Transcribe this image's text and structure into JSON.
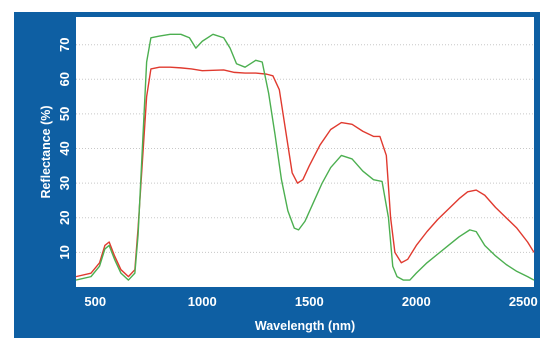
{
  "chart_data": {
    "type": "line",
    "title": "",
    "xlabel": "Wavelength (nm)",
    "ylabel": "Reflectance (%)",
    "xlim": [
      410,
      2550
    ],
    "ylim": [
      0,
      78
    ],
    "x_ticks": [
      500,
      1000,
      1500,
      2000,
      2500
    ],
    "y_ticks": [
      10,
      20,
      30,
      40,
      50,
      60,
      70
    ],
    "grid": "horizontal-dotted",
    "series": [
      {
        "color": "#e03a2f",
        "x": [
          410,
          480,
          520,
          545,
          565,
          590,
          620,
          655,
          685,
          700,
          720,
          740,
          760,
          800,
          850,
          900,
          950,
          1000,
          1050,
          1100,
          1150,
          1200,
          1250,
          1300,
          1330,
          1360,
          1390,
          1420,
          1445,
          1470,
          1500,
          1550,
          1600,
          1650,
          1700,
          1750,
          1800,
          1830,
          1860,
          1880,
          1900,
          1930,
          1960,
          2000,
          2050,
          2100,
          2150,
          2200,
          2240,
          2280,
          2320,
          2370,
          2420,
          2470,
          2520,
          2550
        ],
        "y": [
          3,
          4,
          7,
          12,
          13,
          9,
          5,
          3,
          5,
          17,
          36,
          55,
          63,
          63.5,
          63.5,
          63.3,
          63,
          62.5,
          62.6,
          62.7,
          62,
          61.8,
          61.8,
          61.5,
          61,
          57,
          45,
          33,
          30,
          31,
          35,
          41,
          45.5,
          47.5,
          47,
          45,
          43.5,
          43.5,
          38,
          20,
          10,
          7,
          8,
          12,
          16,
          19.5,
          22.5,
          25.5,
          27.5,
          28,
          26.5,
          23,
          20,
          17,
          13,
          10
        ]
      },
      {
        "color": "#4caf50",
        "x": [
          410,
          480,
          520,
          545,
          565,
          590,
          620,
          655,
          685,
          700,
          720,
          740,
          760,
          800,
          850,
          900,
          940,
          970,
          1000,
          1050,
          1100,
          1130,
          1160,
          1200,
          1250,
          1280,
          1310,
          1340,
          1370,
          1400,
          1430,
          1450,
          1480,
          1520,
          1560,
          1600,
          1650,
          1700,
          1750,
          1800,
          1840,
          1870,
          1890,
          1910,
          1940,
          1970,
          2000,
          2050,
          2100,
          2150,
          2200,
          2250,
          2280,
          2320,
          2370,
          2420,
          2470,
          2520,
          2550
        ],
        "y": [
          2,
          3,
          6,
          11,
          12,
          8,
          4,
          2,
          4,
          15,
          40,
          65,
          72,
          72.5,
          73,
          73,
          72,
          69,
          71,
          73,
          72,
          69,
          64.5,
          63.5,
          65.5,
          65,
          56,
          44,
          31,
          22,
          17,
          16.5,
          19,
          24.5,
          30,
          34.5,
          38,
          37,
          33.5,
          31,
          30.5,
          20,
          6,
          3,
          2,
          2,
          4,
          7,
          9.5,
          12,
          14.5,
          16.5,
          16,
          12,
          9,
          6.5,
          4.5,
          3,
          2
        ]
      }
    ]
  }
}
